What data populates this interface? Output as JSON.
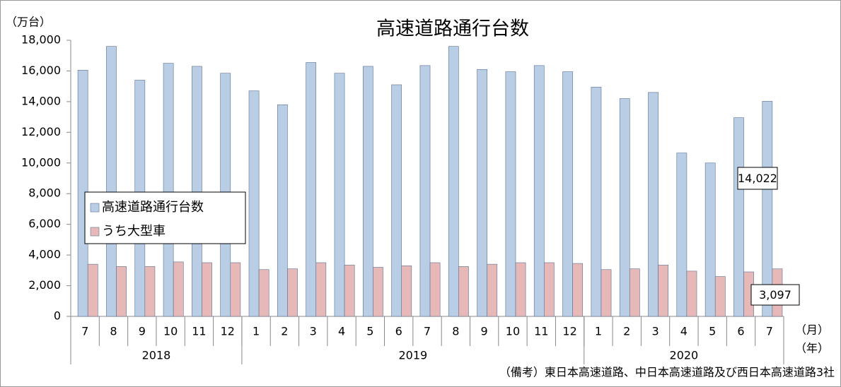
{
  "chart_data": {
    "type": "bar",
    "title": "高速道路通行台数",
    "y_unit": "（万台）",
    "x_unit_month": "（月）",
    "x_unit_year": "（年）",
    "note": "（備考）東日本高速道路、中日本高速道路及び西日本高速道路3社",
    "categories": [
      "7",
      "8",
      "9",
      "10",
      "11",
      "12",
      "1",
      "2",
      "3",
      "4",
      "5",
      "6",
      "7",
      "8",
      "9",
      "10",
      "11",
      "12",
      "1",
      "2",
      "3",
      "4",
      "5",
      "6",
      "7"
    ],
    "year_groups": [
      {
        "label": "2018",
        "span": 6
      },
      {
        "label": "2019",
        "span": 12
      },
      {
        "label": "2020",
        "span": 7
      }
    ],
    "series": [
      {
        "name": "高速道路通行台数",
        "color": "#b9cde5",
        "values": [
          16050,
          17600,
          15400,
          16500,
          16300,
          15850,
          14700,
          13800,
          16550,
          15850,
          16300,
          15100,
          16350,
          17600,
          16100,
          15950,
          16350,
          15950,
          14950,
          14200,
          14600,
          10650,
          10000,
          12950,
          14022
        ],
        "value_labels": [
          null,
          null,
          null,
          null,
          null,
          null,
          null,
          null,
          null,
          null,
          null,
          null,
          null,
          null,
          null,
          null,
          null,
          null,
          null,
          null,
          null,
          null,
          null,
          null,
          "14,022"
        ]
      },
      {
        "name": "うち大型車",
        "color": "#e6b9b8",
        "values": [
          3400,
          3250,
          3250,
          3550,
          3500,
          3500,
          3050,
          3100,
          3500,
          3350,
          3200,
          3300,
          3500,
          3250,
          3400,
          3500,
          3500,
          3450,
          3050,
          3100,
          3350,
          2950,
          2600,
          2900,
          3097
        ],
        "value_labels": [
          null,
          null,
          null,
          null,
          null,
          null,
          null,
          null,
          null,
          null,
          null,
          null,
          null,
          null,
          null,
          null,
          null,
          null,
          null,
          null,
          null,
          null,
          null,
          null,
          "3,097"
        ]
      }
    ],
    "ylim": [
      0,
      18000
    ],
    "yticks": [
      0,
      {
        "value": 2000,
        "label": "2,000"
      },
      {
        "value": 4000,
        "label": "4,000"
      },
      {
        "value": 6000,
        "label": "6,000"
      },
      {
        "value": 8000,
        "label": "8,000"
      },
      {
        "value": 10000,
        "label": "10,000"
      },
      {
        "value": 12000,
        "label": "12,000"
      },
      {
        "value": 14000,
        "label": "14,000"
      },
      {
        "value": 16000,
        "label": "16,000"
      },
      {
        "value": 18000,
        "label": "18,000"
      }
    ],
    "grid": false
  }
}
